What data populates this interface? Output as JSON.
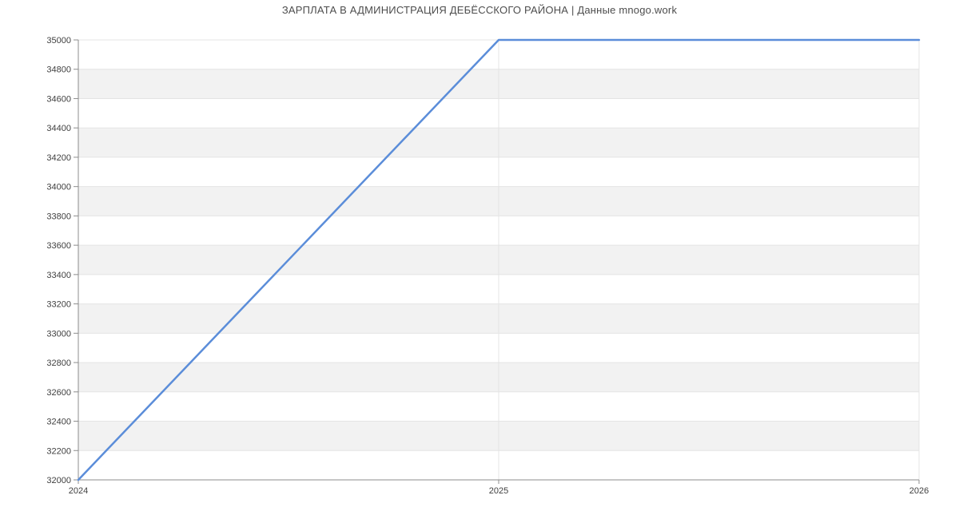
{
  "page": {
    "background": "#ffffff"
  },
  "chart_data": {
    "type": "line",
    "title": "ЗАРПЛАТА В АДМИНИСТРАЦИЯ ДЕБЁССКОГО РАЙОНА | Данные mnogo.work",
    "x": [
      2024,
      2025,
      2026
    ],
    "series": [
      {
        "name": "",
        "values": [
          32000,
          35000,
          35000
        ]
      }
    ],
    "xlabel": "",
    "ylabel": "",
    "xlim": [
      2024,
      2026
    ],
    "ylim": [
      32000,
      35000
    ],
    "x_ticks": [
      2024,
      2025,
      2026
    ],
    "y_ticks": [
      32000,
      32200,
      32400,
      32600,
      32800,
      33000,
      33200,
      33400,
      33600,
      33800,
      34000,
      34200,
      34400,
      34600,
      34800,
      35000
    ],
    "grid": true,
    "legend": "none",
    "striped_bands": true,
    "colors": {
      "line": "#5b8dd9",
      "stripe": "#f2f2f2",
      "gridline": "#e4e4e4",
      "axis": "#8c8c8c",
      "tick_text": "#404040",
      "title_text": "#4d4d4d",
      "background": "#ffffff"
    }
  }
}
